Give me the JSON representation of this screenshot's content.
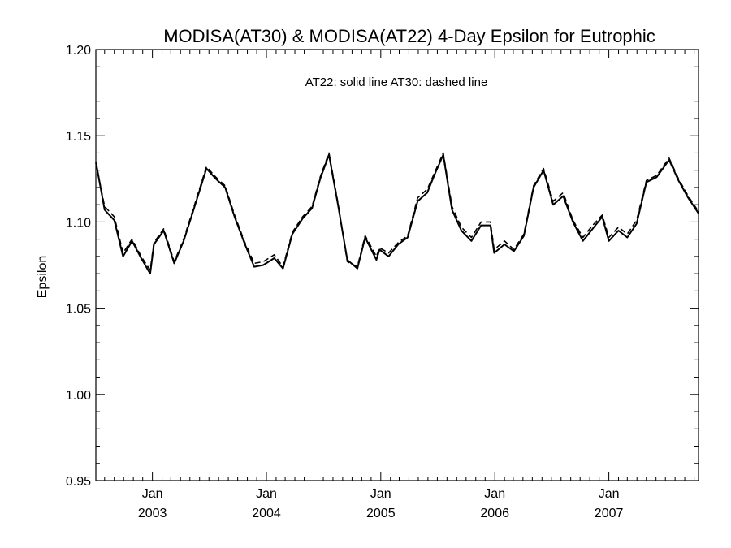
{
  "chart_data": {
    "type": "line",
    "title": "MODISA(AT30) & MODISA(AT22) 4-Day Epsilon for Eutrophic",
    "ylabel": "Epsilon",
    "xlabel": "",
    "annotation": "AT22: solid line   AT30: dashed line",
    "ylim": [
      0.95,
      1.2
    ],
    "xlim": [
      "2002-07-04",
      "2007-10-15"
    ],
    "y_ticks": [
      "0.95",
      "1.00",
      "1.05",
      "1.10",
      "1.15",
      "1.20"
    ],
    "x_ticks": [
      {
        "date": "2003-01-01",
        "month": "Jan",
        "year": "2003"
      },
      {
        "date": "2004-01-01",
        "month": "Jan",
        "year": "2004"
      },
      {
        "date": "2005-01-01",
        "month": "Jan",
        "year": "2005"
      },
      {
        "date": "2006-01-01",
        "month": "Jan",
        "year": "2006"
      },
      {
        "date": "2007-01-01",
        "month": "Jan",
        "year": "2007"
      }
    ],
    "grid": false,
    "series": [
      {
        "name": "AT22",
        "style": "solid",
        "color": "#000000",
        "points": [
          [
            "2002-07-04",
            1.135
          ],
          [
            "2002-08-01",
            1.107
          ],
          [
            "2002-09-01",
            1.101
          ],
          [
            "2002-09-29",
            1.08
          ],
          [
            "2002-10-28",
            1.089
          ],
          [
            "2002-11-26",
            1.079
          ],
          [
            "2002-12-25",
            1.07
          ],
          [
            "2003-01-06",
            1.087
          ],
          [
            "2003-02-06",
            1.095
          ],
          [
            "2003-03-12",
            1.076
          ],
          [
            "2003-04-11",
            1.089
          ],
          [
            "2003-05-11",
            1.106
          ],
          [
            "2003-06-23",
            1.131
          ],
          [
            "2003-07-23",
            1.125
          ],
          [
            "2003-08-22",
            1.12
          ],
          [
            "2003-09-21",
            1.103
          ],
          [
            "2003-10-22",
            1.088
          ],
          [
            "2003-11-23",
            1.074
          ],
          [
            "2003-12-22",
            1.075
          ],
          [
            "2004-01-26",
            1.079
          ],
          [
            "2004-02-23",
            1.073
          ],
          [
            "2004-03-24",
            1.093
          ],
          [
            "2004-04-26",
            1.102
          ],
          [
            "2004-05-26",
            1.108
          ],
          [
            "2004-06-21",
            1.125
          ],
          [
            "2004-07-19",
            1.139
          ],
          [
            "2004-08-17",
            1.11
          ],
          [
            "2004-09-16",
            1.078
          ],
          [
            "2004-10-18",
            1.073
          ],
          [
            "2004-11-12",
            1.091
          ],
          [
            "2004-12-18",
            1.078
          ],
          [
            "2004-12-28",
            1.084
          ],
          [
            "2005-01-26",
            1.08
          ],
          [
            "2005-02-26",
            1.087
          ],
          [
            "2005-03-28",
            1.091
          ],
          [
            "2005-04-29",
            1.112
          ],
          [
            "2005-05-30",
            1.117
          ],
          [
            "2005-06-21",
            1.127
          ],
          [
            "2005-07-20",
            1.139
          ],
          [
            "2005-08-17",
            1.107
          ],
          [
            "2005-09-16",
            1.095
          ],
          [
            "2005-10-18",
            1.089
          ],
          [
            "2005-11-18",
            1.098
          ],
          [
            "2005-12-18",
            1.098
          ],
          [
            "2005-12-30",
            1.082
          ],
          [
            "2006-02-01",
            1.087
          ],
          [
            "2006-03-03",
            1.083
          ],
          [
            "2006-04-04",
            1.092
          ],
          [
            "2006-05-05",
            1.12
          ],
          [
            "2006-06-06",
            1.13
          ],
          [
            "2006-07-07",
            1.11
          ],
          [
            "2006-08-08",
            1.115
          ],
          [
            "2006-09-08",
            1.1
          ],
          [
            "2006-10-10",
            1.089
          ],
          [
            "2006-11-10",
            1.096
          ],
          [
            "2006-12-11",
            1.103
          ],
          [
            "2007-01-01",
            1.089
          ],
          [
            "2007-02-01",
            1.095
          ],
          [
            "2007-03-01",
            1.091
          ],
          [
            "2007-03-31",
            1.099
          ],
          [
            "2007-05-01",
            1.123
          ],
          [
            "2007-06-03",
            1.126
          ],
          [
            "2007-07-13",
            1.136
          ],
          [
            "2007-08-12",
            1.124
          ],
          [
            "2007-09-12",
            1.114
          ],
          [
            "2007-10-15",
            1.105
          ]
        ]
      },
      {
        "name": "AT30",
        "style": "dashed",
        "color": "#000000",
        "points": [
          [
            "2002-07-04",
            1.134
          ],
          [
            "2002-08-01",
            1.109
          ],
          [
            "2002-09-01",
            1.103
          ],
          [
            "2002-09-29",
            1.082
          ],
          [
            "2002-10-28",
            1.09
          ],
          [
            "2002-11-26",
            1.08
          ],
          [
            "2002-12-25",
            1.072
          ],
          [
            "2003-01-06",
            1.088
          ],
          [
            "2003-02-06",
            1.096
          ],
          [
            "2003-03-12",
            1.077
          ],
          [
            "2003-04-11",
            1.09
          ],
          [
            "2003-05-11",
            1.107
          ],
          [
            "2003-06-23",
            1.132
          ],
          [
            "2003-07-23",
            1.126
          ],
          [
            "2003-08-22",
            1.121
          ],
          [
            "2003-09-21",
            1.104
          ],
          [
            "2003-10-22",
            1.089
          ],
          [
            "2003-11-23",
            1.076
          ],
          [
            "2003-12-22",
            1.077
          ],
          [
            "2004-01-26",
            1.081
          ],
          [
            "2004-02-23",
            1.074
          ],
          [
            "2004-03-24",
            1.094
          ],
          [
            "2004-04-26",
            1.103
          ],
          [
            "2004-05-26",
            1.109
          ],
          [
            "2004-06-21",
            1.126
          ],
          [
            "2004-07-19",
            1.14
          ],
          [
            "2004-08-17",
            1.111
          ],
          [
            "2004-09-16",
            1.077
          ],
          [
            "2004-10-18",
            1.074
          ],
          [
            "2004-11-12",
            1.092
          ],
          [
            "2004-12-18",
            1.08
          ],
          [
            "2004-12-28",
            1.085
          ],
          [
            "2005-01-26",
            1.082
          ],
          [
            "2005-02-26",
            1.088
          ],
          [
            "2005-03-28",
            1.092
          ],
          [
            "2005-04-29",
            1.114
          ],
          [
            "2005-05-30",
            1.119
          ],
          [
            "2005-06-21",
            1.128
          ],
          [
            "2005-07-20",
            1.14
          ],
          [
            "2005-08-17",
            1.109
          ],
          [
            "2005-09-16",
            1.097
          ],
          [
            "2005-10-18",
            1.091
          ],
          [
            "2005-11-18",
            1.1
          ],
          [
            "2005-12-18",
            1.1
          ],
          [
            "2005-12-30",
            1.084
          ],
          [
            "2006-02-01",
            1.089
          ],
          [
            "2006-03-03",
            1.084
          ],
          [
            "2006-04-04",
            1.093
          ],
          [
            "2006-05-05",
            1.121
          ],
          [
            "2006-06-06",
            1.131
          ],
          [
            "2006-07-07",
            1.112
          ],
          [
            "2006-08-08",
            1.117
          ],
          [
            "2006-09-08",
            1.101
          ],
          [
            "2006-10-10",
            1.091
          ],
          [
            "2006-11-10",
            1.098
          ],
          [
            "2006-12-11",
            1.104
          ],
          [
            "2007-01-01",
            1.091
          ],
          [
            "2007-02-01",
            1.097
          ],
          [
            "2007-03-01",
            1.093
          ],
          [
            "2007-03-31",
            1.101
          ],
          [
            "2007-05-01",
            1.124
          ],
          [
            "2007-06-03",
            1.127
          ],
          [
            "2007-07-13",
            1.137
          ],
          [
            "2007-08-12",
            1.125
          ],
          [
            "2007-09-12",
            1.115
          ],
          [
            "2007-10-15",
            1.106
          ]
        ]
      }
    ]
  }
}
